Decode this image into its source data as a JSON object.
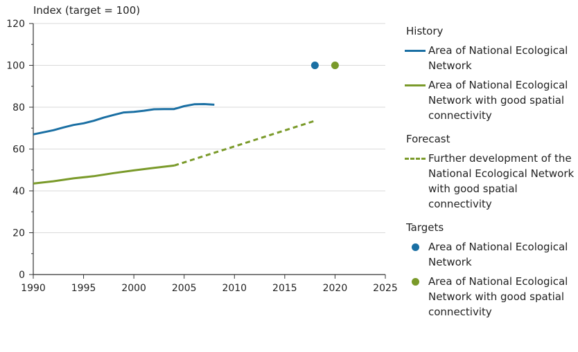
{
  "chart_data": {
    "type": "line",
    "title": "",
    "ylabel": "Index (target = 100)",
    "xlabel": "",
    "xlim": [
      1990,
      2025
    ],
    "ylim": [
      0,
      120
    ],
    "x_ticks": [
      "1990",
      "1995",
      "2000",
      "2005",
      "2010",
      "2015",
      "2020",
      "2025"
    ],
    "y_ticks": [
      "0",
      "20",
      "40",
      "60",
      "80",
      "100",
      "120"
    ],
    "grid": "horizontal",
    "legend_position": "right",
    "colors": {
      "blue": "#1a6fa3",
      "green": "#7a9a2a",
      "grid": "#d9d9d9",
      "axis": "#333333"
    },
    "series": [
      {
        "name": "Area of National Ecological Network",
        "group": "History",
        "style": "solid",
        "color": "#1a6fa3",
        "x": [
          1990,
          1991,
          1992,
          1993,
          1994,
          1995,
          1996,
          1997,
          1998,
          1999,
          2000,
          2001,
          2002,
          2003,
          2004,
          2005,
          2006,
          2007,
          2008
        ],
        "y": [
          67.0,
          68.0,
          69.0,
          70.3,
          71.5,
          72.3,
          73.5,
          75.0,
          76.3,
          77.5,
          77.8,
          78.3,
          79.0,
          79.1,
          79.1,
          80.5,
          81.4,
          81.5,
          81.2
        ]
      },
      {
        "name": "Area of National Ecological Network with good spatial connectivity",
        "group": "History",
        "style": "solid",
        "color": "#7a9a2a",
        "x": [
          1990,
          1992,
          1994,
          1996,
          1998,
          2000,
          2002,
          2004
        ],
        "y": [
          43.5,
          44.6,
          46.0,
          47.0,
          48.5,
          49.8,
          51.0,
          52.1
        ]
      },
      {
        "name": "Further development of the National Ecological Network with good spatial connectivity",
        "group": "Forecast",
        "style": "dashed",
        "color": "#7a9a2a",
        "x": [
          2004,
          2018
        ],
        "y": [
          52.1,
          73.5
        ]
      },
      {
        "name": "Area of National Ecological Network",
        "group": "Targets",
        "style": "point",
        "color": "#1a6fa3",
        "x": [
          2018
        ],
        "y": [
          100
        ]
      },
      {
        "name": "Area of National Ecological Network with good spatial connectivity",
        "group": "Targets",
        "style": "point",
        "color": "#7a9a2a",
        "x": [
          2020
        ],
        "y": [
          100
        ]
      }
    ]
  },
  "legend": {
    "groups": [
      {
        "title": "History",
        "items": [
          {
            "label": "Area of National Ecological Network",
            "key": "line",
            "color": "#1a6fa3"
          },
          {
            "label": "Area of National Ecological Network with good spatial connectivity",
            "key": "line",
            "color": "#7a9a2a"
          }
        ]
      },
      {
        "title": "Forecast",
        "items": [
          {
            "label": "Further development of the National Ecological Network with good spatial connectivity",
            "key": "dash",
            "color": "#7a9a2a"
          }
        ]
      },
      {
        "title": "Targets",
        "items": [
          {
            "label": "Area of National Ecological Network",
            "key": "dot",
            "color": "#1a6fa3"
          },
          {
            "label": "Area of National Ecological Network with good spatial connectivity",
            "key": "dot",
            "color": "#7a9a2a"
          }
        ]
      }
    ]
  }
}
